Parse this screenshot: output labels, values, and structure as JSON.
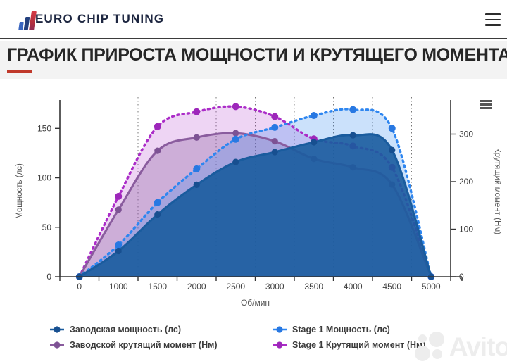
{
  "header": {
    "brand": "EURO CHIP TUNING",
    "menu_icon": "hamburger-icon"
  },
  "title": {
    "text": "ГРАФИК ПРИРОСТА МОЩНОСТИ И КРУТЯЩЕГО МОМЕНТА",
    "accent_color": "#c0392b"
  },
  "chart_data": {
    "type": "area",
    "categories": [
      "0",
      "1000",
      "1500",
      "2000",
      "2500",
      "3000",
      "3500",
      "4000",
      "4500",
      "5000"
    ],
    "xlabel": "Об/мин",
    "y_left": {
      "label": "Мощность (лс)",
      "ticks": [
        0,
        50,
        100,
        150
      ],
      "max": 173
    },
    "y_right": {
      "label": "Крутящий момент (Нм)",
      "ticks": [
        0,
        100,
        200,
        300
      ],
      "max": 360
    },
    "grid": "vertical-dotted",
    "legend_position": "bottom",
    "series": [
      {
        "name": "Заводская мощность (лс)",
        "axis": "left",
        "style": "solid",
        "color": "#1a5c9e",
        "marker_color": "#174f90",
        "fill_alpha": 0.9,
        "values": [
          0,
          26,
          63,
          93,
          116,
          126,
          136,
          143,
          128,
          0
        ]
      },
      {
        "name": "Stage 1 Мощность (лс)",
        "axis": "left",
        "style": "dotted",
        "color": "#2e86f0",
        "marker_color": "#2878e2",
        "fill_alpha": 0.25,
        "values": [
          0,
          32,
          75,
          109,
          139,
          151,
          163,
          169,
          150,
          0
        ]
      },
      {
        "name": "Заводской крутящий момент (Нм)",
        "axis": "right",
        "style": "solid",
        "color": "#8a5c9e",
        "marker_color": "#7d5294",
        "fill_alpha": 0.32,
        "values": [
          0,
          141,
          265,
          293,
          302,
          285,
          248,
          230,
          194,
          0
        ]
      },
      {
        "name": "Stage 1 Крутящий момент (Нм)",
        "axis": "right",
        "style": "dotted",
        "color": "#ab2cc8",
        "marker_color": "#9d27ba",
        "fill_alpha": 0.2,
        "values": [
          0,
          169,
          316,
          347,
          358,
          337,
          290,
          275,
          230,
          0
        ]
      }
    ]
  },
  "chart_ui": {
    "context_menu_icon": "hamburger-icon"
  },
  "watermark": {
    "text": "Avito"
  }
}
